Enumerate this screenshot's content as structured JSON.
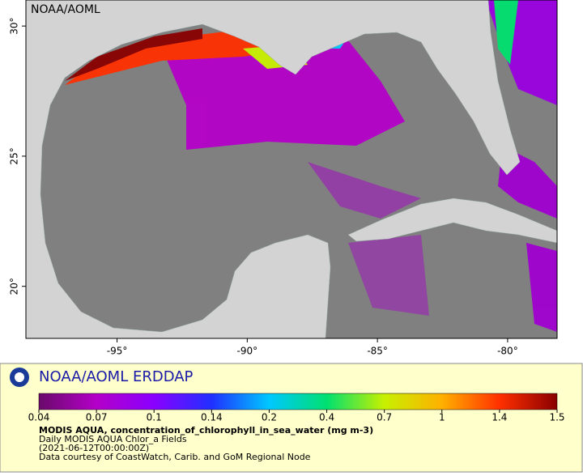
{
  "map": {
    "label": "NOAA/AOML",
    "xlim": [
      -98.5,
      -78.1
    ],
    "ylim": [
      18.0,
      31.0
    ],
    "xticks": [
      {
        "value": -95,
        "label": "-95°"
      },
      {
        "value": -90,
        "label": "-90°"
      },
      {
        "value": -85,
        "label": "-85°"
      },
      {
        "value": -80,
        "label": "-80°"
      }
    ],
    "yticks": [
      {
        "value": 20,
        "label": "20°"
      },
      {
        "value": 25,
        "label": "25°"
      },
      {
        "value": 30,
        "label": "30°"
      }
    ]
  },
  "footer": {
    "title": "NOAA/AOML ERDDAP",
    "colorbar": {
      "ticks": [
        0.04,
        0.07,
        0.1,
        0.14,
        0.2,
        0.4,
        0.7,
        1,
        1.4,
        1.5
      ],
      "colors": [
        "#6a0a6a",
        "#b400c8",
        "#8a00ff",
        "#2030ff",
        "#00c8ff",
        "#00e070",
        "#c8f000",
        "#ffb000",
        "#ff3000",
        "#8a0000"
      ]
    },
    "lines": [
      "MODIS AQUA, concentration_of_chlorophyll_in_sea_water (mg m-3)",
      "Daily MODIS AQUA Chlor_a Fields",
      "(2021-06-12T00:00:00Z)",
      "Data courtesy of CoastWatch, Carib. and GoM Regional Node"
    ]
  }
}
